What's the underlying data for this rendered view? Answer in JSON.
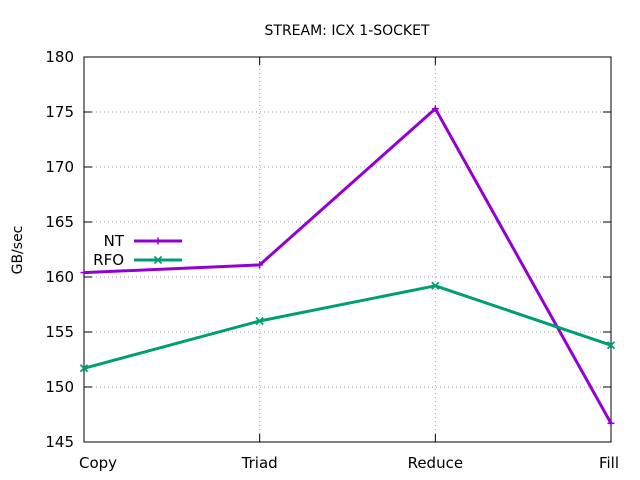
{
  "chart_data": {
    "type": "line",
    "title": "STREAM: ICX 1-SOCKET",
    "xlabel": "",
    "ylabel": "GB/sec",
    "categories": [
      "Copy",
      "Triad",
      "Reduce",
      "Fill"
    ],
    "ylim": [
      145,
      180
    ],
    "yticks": [
      145,
      150,
      155,
      160,
      165,
      170,
      175,
      180
    ],
    "grid": true,
    "legend_position": "left",
    "series": [
      {
        "name": "NT",
        "color": "#9400d3",
        "marker": "plus",
        "values": [
          160.4,
          161.1,
          175.3,
          146.7
        ]
      },
      {
        "name": "RFO",
        "color": "#009e73",
        "marker": "cross",
        "values": [
          151.7,
          156.0,
          159.2,
          153.8
        ]
      }
    ]
  }
}
